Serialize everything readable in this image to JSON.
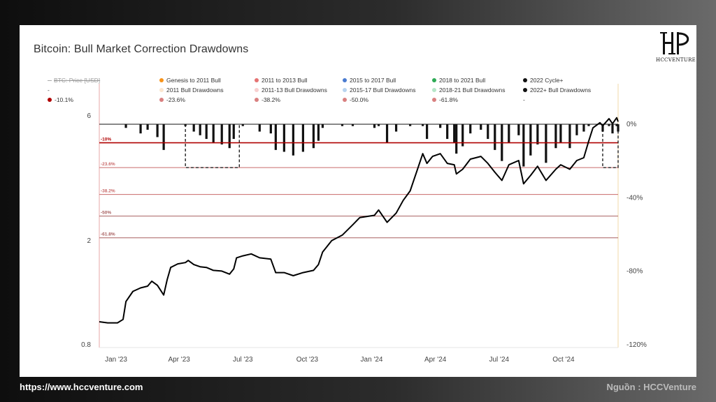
{
  "page": {
    "title": "Bitcoin: Bull Market Correction Drawdowns",
    "logo_text": "HCCVENTURE",
    "footer_url": "https://www.hccventure.com",
    "footer_source": "Nguồn : HCCVenture"
  },
  "legend": [
    {
      "label": "BTC: Price [USD]",
      "color": "#bbbbbb",
      "style": "strike"
    },
    {
      "label": "Genesis to 2011 Bull",
      "color": "#f7931a",
      "style": "dot"
    },
    {
      "label": "2011 to 2013 Bull",
      "color": "#e57373",
      "style": "dot"
    },
    {
      "label": "2015 to 2017 Bull",
      "color": "#4a7bd0",
      "style": "dot"
    },
    {
      "label": "2018 to 2021 Bull",
      "color": "#2eaa55",
      "style": "dot"
    },
    {
      "label": "2022 Cycle+",
      "color": "#111111",
      "style": "dot"
    },
    {
      "label": "-",
      "color": "#aaaaaa",
      "style": "dash"
    },
    {
      "label": "2011 Bull Drawdowns",
      "color": "#fbe6cf",
      "style": "dot"
    },
    {
      "label": "2011-13 Bull Drawdowns",
      "color": "#f8cfcf",
      "style": "dot"
    },
    {
      "label": "2015-17 Bull Drawdowns",
      "color": "#b8d4ef",
      "style": "dot"
    },
    {
      "label": "2018-21 Bull Drawdowns",
      "color": "#b6e6c8",
      "style": "dot"
    },
    {
      "label": "2022+ Bull Drawdowns",
      "color": "#111111",
      "style": "dot"
    },
    {
      "label": "-10.1%",
      "color": "#b00000",
      "style": "dot"
    },
    {
      "label": "-23.6%",
      "color": "#d98080",
      "style": "dot"
    },
    {
      "label": "-38.2%",
      "color": "#d98080",
      "style": "dot"
    },
    {
      "label": "-50.0%",
      "color": "#d98080",
      "style": "dot"
    },
    {
      "label": "-61.8%",
      "color": "#d98080",
      "style": "dot"
    },
    {
      "label": "-",
      "color": "#aaaaaa",
      "style": "none"
    }
  ],
  "chart_data": {
    "type": "line",
    "title": "Bitcoin: Bull Market Correction Drawdowns",
    "x_ticks": [
      "Jan '23",
      "Apr '23",
      "Jul '23",
      "Oct '23",
      "Jan '24",
      "Apr '24",
      "Jul '24",
      "Oct '24"
    ],
    "x_tick_dates": [
      "2023-01-01",
      "2023-04-01",
      "2023-07-01",
      "2023-10-01",
      "2024-01-01",
      "2024-04-01",
      "2024-07-01",
      "2024-10-01"
    ],
    "x_range": [
      "2022-12-08",
      "2024-12-18"
    ],
    "left_axis": {
      "scale": "log",
      "ticks": [
        "0.8",
        "2",
        "6"
      ],
      "tick_values": [
        0.8,
        2,
        6
      ],
      "range": [
        0.8,
        6
      ]
    },
    "right_axis": {
      "ticks": [
        "0%",
        "-40%",
        "-80%",
        "-120%"
      ],
      "tick_values": [
        0,
        -40,
        -80,
        -120
      ],
      "range": [
        -120,
        0
      ]
    },
    "levels": [
      {
        "label": "-10%",
        "value": -10.1,
        "color": "#b00000"
      },
      {
        "label": "-23.6%",
        "value": -23.6,
        "color": "#c96a6a"
      },
      {
        "label": "-38.2%",
        "value": -38.2,
        "color": "#c96a6a"
      },
      {
        "label": "-50%",
        "value": -50,
        "color": "#a86060"
      },
      {
        "label": "-61.8%",
        "value": -61.8,
        "color": "#a86060"
      }
    ],
    "boxes": [
      {
        "from": "2023-04-10",
        "to": "2023-06-26",
        "depth": -23.6
      },
      {
        "from": "2024-11-26",
        "to": "2024-12-18",
        "depth": -23.6
      }
    ],
    "series": [
      {
        "name": "2022 Cycle+",
        "color": "#000000",
        "points": [
          [
            "2022-12-08",
            0.98
          ],
          [
            "2022-12-20",
            0.97
          ],
          [
            "2023-01-03",
            0.97
          ],
          [
            "2023-01-11",
            1.0
          ],
          [
            "2023-01-15",
            1.17
          ],
          [
            "2023-01-25",
            1.28
          ],
          [
            "2023-02-05",
            1.32
          ],
          [
            "2023-02-15",
            1.34
          ],
          [
            "2023-02-21",
            1.4
          ],
          [
            "2023-03-01",
            1.35
          ],
          [
            "2023-03-10",
            1.24
          ],
          [
            "2023-03-15",
            1.42
          ],
          [
            "2023-03-20",
            1.58
          ],
          [
            "2023-03-30",
            1.63
          ],
          [
            "2023-04-10",
            1.65
          ],
          [
            "2023-04-14",
            1.68
          ],
          [
            "2023-04-22",
            1.62
          ],
          [
            "2023-05-01",
            1.59
          ],
          [
            "2023-05-10",
            1.58
          ],
          [
            "2023-05-20",
            1.54
          ],
          [
            "2023-06-01",
            1.53
          ],
          [
            "2023-06-12",
            1.49
          ],
          [
            "2023-06-18",
            1.56
          ],
          [
            "2023-06-22",
            1.72
          ],
          [
            "2023-07-01",
            1.75
          ],
          [
            "2023-07-13",
            1.78
          ],
          [
            "2023-07-25",
            1.72
          ],
          [
            "2023-08-10",
            1.7
          ],
          [
            "2023-08-17",
            1.51
          ],
          [
            "2023-08-29",
            1.51
          ],
          [
            "2023-09-11",
            1.47
          ],
          [
            "2023-09-25",
            1.51
          ],
          [
            "2023-10-10",
            1.54
          ],
          [
            "2023-10-17",
            1.62
          ],
          [
            "2023-10-23",
            1.81
          ],
          [
            "2023-11-05",
            2.0
          ],
          [
            "2023-11-20",
            2.1
          ],
          [
            "2023-12-05",
            2.3
          ],
          [
            "2023-12-15",
            2.45
          ],
          [
            "2024-01-05",
            2.5
          ],
          [
            "2024-01-11",
            2.62
          ],
          [
            "2024-01-23",
            2.35
          ],
          [
            "2024-02-05",
            2.55
          ],
          [
            "2024-02-15",
            2.85
          ],
          [
            "2024-02-25",
            3.1
          ],
          [
            "2024-03-05",
            3.65
          ],
          [
            "2024-03-14",
            4.3
          ],
          [
            "2024-03-20",
            3.95
          ],
          [
            "2024-03-28",
            4.2
          ],
          [
            "2024-04-08",
            4.3
          ],
          [
            "2024-04-18",
            3.95
          ],
          [
            "2024-04-28",
            3.9
          ],
          [
            "2024-05-01",
            3.6
          ],
          [
            "2024-05-10",
            3.75
          ],
          [
            "2024-05-21",
            4.1
          ],
          [
            "2024-06-05",
            4.2
          ],
          [
            "2024-06-15",
            3.95
          ],
          [
            "2024-06-25",
            3.65
          ],
          [
            "2024-07-05",
            3.4
          ],
          [
            "2024-07-15",
            3.9
          ],
          [
            "2024-07-29",
            4.05
          ],
          [
            "2024-08-05",
            3.3
          ],
          [
            "2024-08-15",
            3.55
          ],
          [
            "2024-08-25",
            3.85
          ],
          [
            "2024-09-06",
            3.4
          ],
          [
            "2024-09-20",
            3.75
          ],
          [
            "2024-09-27",
            3.9
          ],
          [
            "2024-10-10",
            3.75
          ],
          [
            "2024-10-20",
            4.05
          ],
          [
            "2024-10-30",
            4.15
          ],
          [
            "2024-11-06",
            4.8
          ],
          [
            "2024-11-12",
            5.4
          ],
          [
            "2024-11-22",
            5.65
          ],
          [
            "2024-11-26",
            5.5
          ],
          [
            "2024-12-05",
            5.85
          ],
          [
            "2024-12-10",
            5.6
          ],
          [
            "2024-12-16",
            5.9
          ],
          [
            "2024-12-18",
            5.7
          ]
        ]
      },
      {
        "name": "2022+ Bull Drawdowns",
        "color": "#000000",
        "type": "bars",
        "points": [
          [
            "2023-01-15",
            -2
          ],
          [
            "2023-02-05",
            -5
          ],
          [
            "2023-02-15",
            -3
          ],
          [
            "2023-03-01",
            -7
          ],
          [
            "2023-03-10",
            -14
          ],
          [
            "2023-04-10",
            -1
          ],
          [
            "2023-04-22",
            -4
          ],
          [
            "2023-05-01",
            -6
          ],
          [
            "2023-05-10",
            -8
          ],
          [
            "2023-05-20",
            -10
          ],
          [
            "2023-06-01",
            -11
          ],
          [
            "2023-06-12",
            -13
          ],
          [
            "2023-06-18",
            -8
          ],
          [
            "2023-07-01",
            -1
          ],
          [
            "2023-07-25",
            -4
          ],
          [
            "2023-08-10",
            -5
          ],
          [
            "2023-08-17",
            -14
          ],
          [
            "2023-08-29",
            -15
          ],
          [
            "2023-09-11",
            -17
          ],
          [
            "2023-09-25",
            -15
          ],
          [
            "2023-10-10",
            -13
          ],
          [
            "2023-10-17",
            -9
          ],
          [
            "2023-10-23",
            -2
          ],
          [
            "2023-11-20",
            -1
          ],
          [
            "2023-12-05",
            -1
          ],
          [
            "2024-01-05",
            -2
          ],
          [
            "2024-01-11",
            -1
          ],
          [
            "2024-01-23",
            -10
          ],
          [
            "2024-02-05",
            -4
          ],
          [
            "2024-02-25",
            -1
          ],
          [
            "2024-03-14",
            -1
          ],
          [
            "2024-03-20",
            -8
          ],
          [
            "2024-04-08",
            -2
          ],
          [
            "2024-04-18",
            -8
          ],
          [
            "2024-04-28",
            -10
          ],
          [
            "2024-05-01",
            -16
          ],
          [
            "2024-05-10",
            -12
          ],
          [
            "2024-05-21",
            -5
          ],
          [
            "2024-06-05",
            -3
          ],
          [
            "2024-06-15",
            -8
          ],
          [
            "2024-06-25",
            -14
          ],
          [
            "2024-07-05",
            -20
          ],
          [
            "2024-07-15",
            -10
          ],
          [
            "2024-07-29",
            -6
          ],
          [
            "2024-08-05",
            -23
          ],
          [
            "2024-08-15",
            -17
          ],
          [
            "2024-08-25",
            -11
          ],
          [
            "2024-09-06",
            -21
          ],
          [
            "2024-09-20",
            -13
          ],
          [
            "2024-09-27",
            -10
          ],
          [
            "2024-10-10",
            -13
          ],
          [
            "2024-10-20",
            -6
          ],
          [
            "2024-10-30",
            -4
          ],
          [
            "2024-11-06",
            -1
          ],
          [
            "2024-11-26",
            -4
          ],
          [
            "2024-12-05",
            -1
          ],
          [
            "2024-12-10",
            -5
          ],
          [
            "2024-12-16",
            -1
          ],
          [
            "2024-12-18",
            -4
          ]
        ]
      }
    ]
  }
}
